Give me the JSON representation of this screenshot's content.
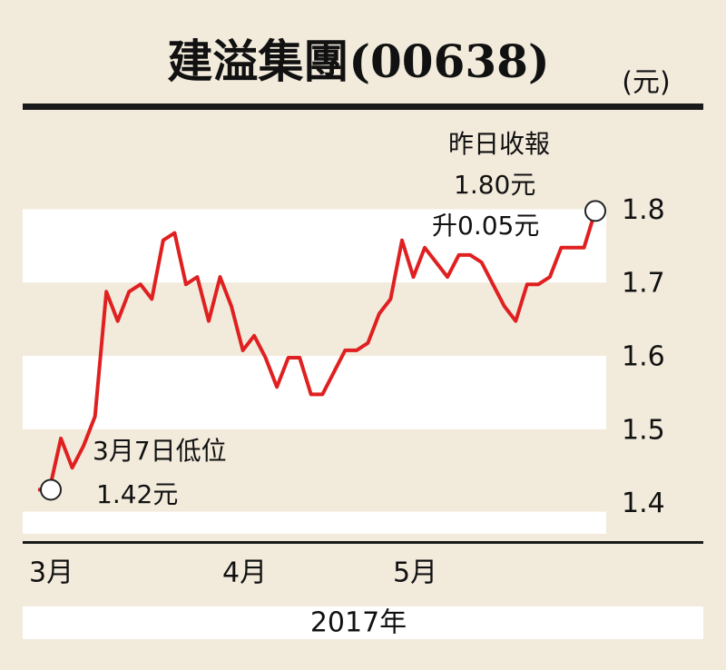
{
  "chart_data": {
    "type": "line",
    "title": "建溢集團(00638)",
    "unit": "(元)",
    "x_axis_label": "2017年",
    "categories": [
      "3月",
      null,
      null,
      null,
      null,
      null,
      null,
      null,
      null,
      null,
      null,
      null,
      null,
      null,
      null,
      null,
      null,
      "4月",
      null,
      null,
      null,
      null,
      null,
      null,
      null,
      null,
      null,
      null,
      null,
      null,
      null,
      null,
      "5月",
      null,
      null,
      null,
      null,
      null,
      null,
      null,
      null,
      null,
      null,
      null,
      null,
      null,
      null,
      null,
      null,
      null
    ],
    "series": [
      {
        "name": "建溢集團",
        "color": "#e02020",
        "values": [
          1.42,
          1.42,
          1.49,
          1.45,
          1.48,
          1.52,
          1.69,
          1.65,
          1.69,
          1.7,
          1.68,
          1.76,
          1.77,
          1.7,
          1.71,
          1.65,
          1.71,
          1.67,
          1.61,
          1.63,
          1.6,
          1.56,
          1.6,
          1.6,
          1.55,
          1.55,
          1.58,
          1.61,
          1.61,
          1.62,
          1.66,
          1.68,
          1.76,
          1.71,
          1.75,
          1.73,
          1.71,
          1.74,
          1.74,
          1.73,
          1.7,
          1.67,
          1.65,
          1.7,
          1.7,
          1.71,
          1.75,
          1.75,
          1.75,
          1.8
        ]
      }
    ],
    "annotations": [
      {
        "index": 49,
        "texts": [
          "昨日收報",
          "1.80元",
          "升0.05元"
        ]
      },
      {
        "index": 0,
        "texts": [
          "3月7日低位",
          "1.42元"
        ]
      }
    ],
    "ylim": [
      1.35,
      1.85
    ],
    "yticks": [
      1.4,
      1.5,
      1.6,
      1.7,
      1.8
    ]
  }
}
